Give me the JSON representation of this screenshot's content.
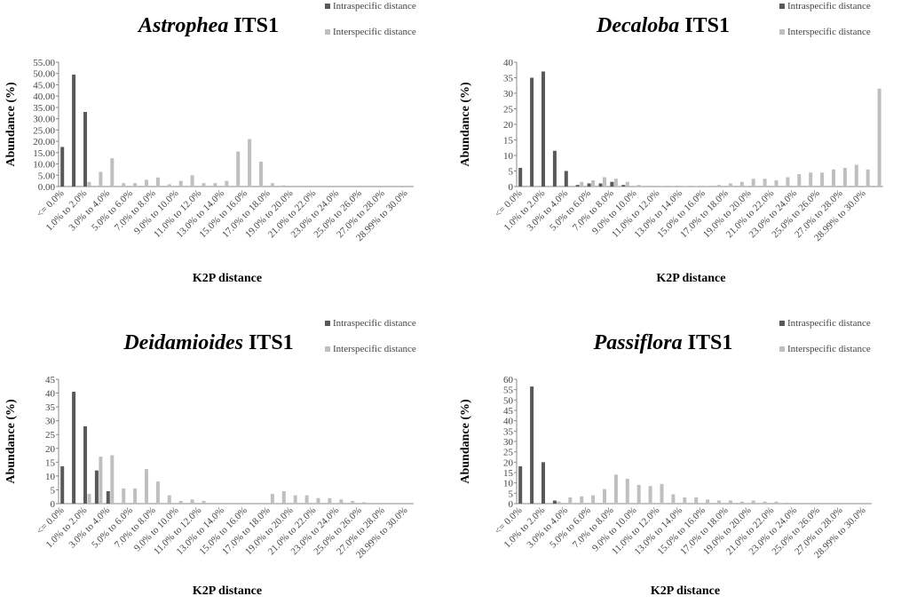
{
  "chart_data": [
    {
      "type": "bar",
      "title": [
        "Astrophea",
        "ITS1"
      ],
      "x_label": "K2P distance",
      "y_label": "Abundance (%)",
      "categories": [
        "<= 0.0%",
        null,
        "1.0% to 2.0%",
        null,
        "3.0% to 4.0%",
        null,
        "5.0% to 6.0%",
        null,
        "7.0% to 8.0%",
        null,
        "9.0% to 10.0%",
        null,
        "11.0% to 12.0%",
        null,
        "13.0% to 14.0%",
        null,
        "15.0% to 16.0%",
        null,
        "17.0% to 18.0%",
        null,
        "19.0% to 20.0%",
        null,
        "21.0% to 22.0%",
        null,
        "23.0% to 24.0%",
        null,
        "25.0% to 26.0%",
        null,
        "27.0% to 28.0%",
        null,
        "28.99% to 30.0%"
      ],
      "series": [
        {
          "name": "Intraspecific distance",
          "color": "#595959",
          "values": [
            17.5,
            49.5,
            33,
            0,
            0,
            0,
            0,
            0,
            0,
            0,
            0,
            0,
            0,
            0,
            0,
            0,
            0,
            0,
            0,
            0,
            0,
            0,
            0,
            0,
            0,
            0,
            0,
            0,
            0,
            0,
            0
          ]
        },
        {
          "name": "Interspecific distance",
          "color": "#bfbfbf",
          "values": [
            0,
            0,
            2,
            6.5,
            12.5,
            1.5,
            1.5,
            3,
            4,
            1,
            2.5,
            5,
            1.5,
            1.5,
            2.5,
            15.5,
            21,
            11,
            1.5,
            0.5,
            0,
            0,
            0,
            0,
            0,
            0,
            0,
            0,
            0,
            0,
            0
          ]
        }
      ],
      "ylim": [
        0,
        55
      ],
      "yticks": [
        {
          "value": 0,
          "label": "0.00"
        },
        {
          "value": 5,
          "label": "5.00"
        },
        {
          "value": 10,
          "label": "10.00"
        },
        {
          "value": 15,
          "label": "15.00"
        },
        {
          "value": 20,
          "label": "20.00"
        },
        {
          "value": 25,
          "label": "25.00"
        },
        {
          "value": 30,
          "label": "30.00"
        },
        {
          "value": 35,
          "label": "35.00"
        },
        {
          "value": 40,
          "label": "40.00"
        },
        {
          "value": 45,
          "label": "45.00"
        },
        {
          "value": 50,
          "label": "50.00"
        },
        {
          "value": 55,
          "label": "55.00"
        }
      ],
      "legend": "top-right"
    },
    {
      "type": "bar",
      "title": [
        "Decaloba",
        "ITS1"
      ],
      "x_label": "K2P distance",
      "y_label": "Abundance (%)",
      "categories": [
        "<= 0.0%",
        null,
        "1.0% to 2.0%",
        null,
        "3.0% to 4.0%",
        null,
        "5.0% to 6.0%",
        null,
        "7.0% to 8.0%",
        null,
        "9.0% to 10.0%",
        null,
        "11.0% to 12.0%",
        null,
        "13.0% to 14.0%",
        null,
        "15.0% to 16.0%",
        null,
        "17.0% to 18.0%",
        null,
        "19.0% to 20.0%",
        null,
        "21.0% to 22.0%",
        null,
        "23.0% to 24.0%",
        null,
        "25.0% to 26.0%",
        null,
        "27.0% to 28.0%",
        null,
        "28.99% to 30.0%",
        null
      ],
      "series": [
        {
          "name": "Intraspecific distance",
          "color": "#595959",
          "values": [
            6,
            35,
            37,
            11.5,
            5,
            0.5,
            1,
            1,
            1.5,
            0.5,
            0,
            0,
            0,
            0,
            0,
            0,
            0,
            0,
            0,
            0,
            0,
            0,
            0,
            0,
            0,
            0,
            0,
            0,
            0,
            0,
            0,
            0
          ]
        },
        {
          "name": "Interspecific distance",
          "color": "#bfbfbf",
          "values": [
            0,
            0,
            0,
            0,
            0,
            1.5,
            2,
            3,
            2.5,
            1.5,
            0.5,
            0.3,
            0.2,
            0.2,
            0.1,
            0.1,
            0.2,
            0.5,
            1,
            1.5,
            2.5,
            2.5,
            2,
            3,
            4,
            4.5,
            4.5,
            5.5,
            6,
            7,
            5.5,
            31.5
          ]
        }
      ],
      "ylim": [
        0,
        40
      ],
      "yticks": [
        0,
        5,
        10,
        15,
        20,
        25,
        30,
        35,
        40
      ],
      "legend": "top-right"
    },
    {
      "type": "bar",
      "title": [
        "Deidamioides",
        "ITS1"
      ],
      "x_label": "K2P distance",
      "y_label": "Abundance (%)",
      "categories": [
        "<= 0.0%",
        null,
        "1.0% to 2.0%",
        null,
        "3.0% to 4.0%",
        null,
        "5.0% to 6.0%",
        null,
        "7.0% to 8.0%",
        null,
        "9.0% to 10.0%",
        null,
        "11.0% to 12.0%",
        null,
        "13.0% to 14.0%",
        null,
        "15.0% to 16.0%",
        null,
        "17.0% to 18.0%",
        null,
        "19.0% to 20.0%",
        null,
        "21.0% to 22.0%",
        null,
        "23.0% to 24.0%",
        null,
        "25.0% to 26.0%",
        null,
        "27.0% to 28.0%",
        null,
        "28.99% to 30.0%"
      ],
      "series": [
        {
          "name": "Intraspecific distance",
          "color": "#595959",
          "values": [
            13.5,
            40.5,
            28,
            12,
            4.5,
            0,
            0,
            0,
            0,
            0,
            0,
            0,
            0,
            0,
            0,
            0,
            0,
            0,
            0,
            0,
            0,
            0,
            0,
            0,
            0,
            0,
            0,
            0,
            0,
            0,
            0
          ]
        },
        {
          "name": "Interspecific distance",
          "color": "#bfbfbf",
          "values": [
            0,
            0,
            3.5,
            17,
            17.5,
            5.5,
            5.5,
            12.5,
            8,
            3,
            1,
            1.5,
            1,
            0.3,
            0,
            0,
            0,
            0,
            3.5,
            4.5,
            3,
            3,
            2,
            2,
            1.5,
            1,
            0.5,
            0,
            0,
            0,
            0
          ]
        }
      ],
      "ylim": [
        0,
        45
      ],
      "yticks": [
        0,
        5,
        10,
        15,
        20,
        25,
        30,
        35,
        40,
        45
      ],
      "legend": "top-right"
    },
    {
      "type": "bar",
      "title": [
        "Passiflora",
        "ITS1"
      ],
      "x_label": "K2P distance",
      "y_label": "Abundance (%)",
      "categories": [
        "<= 0.0%",
        null,
        "1.0% to 2.0%",
        null,
        "3.0% to 4.0%",
        null,
        "5.0% to 6.0%",
        null,
        "7.0% to 8.0%",
        null,
        "9.0% to 10.0%",
        null,
        "11.0% to 12.0%",
        null,
        "13.0% to 14.0%",
        null,
        "15.0% to 16.0%",
        null,
        "17.0% to 18.0%",
        null,
        "19.0% to 20.0%",
        null,
        "21.0% to 22.0%",
        null,
        "23.0% to 24.0%",
        null,
        "25.0% to 26.0%",
        null,
        "27.0% to 28.0%",
        null,
        "28.99% to 30.0%"
      ],
      "series": [
        {
          "name": "Intraspecific distance",
          "color": "#595959",
          "values": [
            18,
            56.5,
            20,
            1.5,
            0,
            0,
            0,
            0,
            0,
            0,
            0,
            0,
            0,
            0,
            0,
            0,
            0,
            0,
            0,
            0,
            0,
            0,
            0,
            0,
            0,
            0,
            0,
            0,
            0,
            0,
            0
          ]
        },
        {
          "name": "Interspecific distance",
          "color": "#bfbfbf",
          "values": [
            0,
            0,
            0,
            1,
            3,
            3.5,
            4,
            7,
            14,
            12,
            9,
            8.5,
            9.5,
            4.5,
            3,
            3,
            2,
            1.5,
            1.5,
            1,
            1.5,
            1,
            1,
            0.5,
            0,
            0,
            0,
            0,
            0,
            0,
            0
          ]
        }
      ],
      "ylim": [
        0,
        60
      ],
      "yticks": [
        0,
        5,
        10,
        15,
        20,
        25,
        30,
        35,
        40,
        45,
        50,
        55,
        60
      ],
      "legend": "top-right"
    }
  ]
}
